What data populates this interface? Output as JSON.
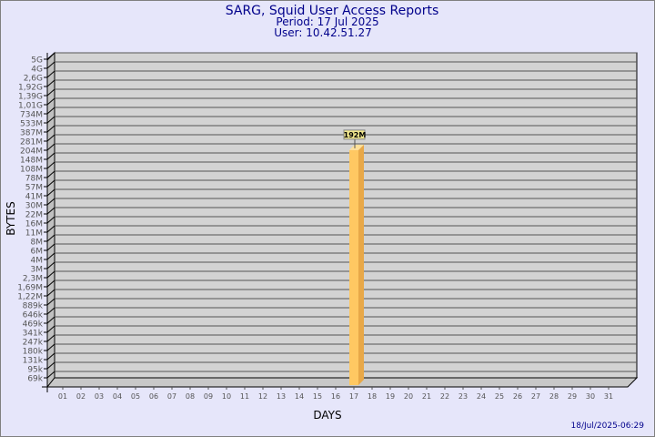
{
  "chart_data": {
    "type": "bar",
    "title": "SARG, Squid User Access Reports",
    "subtitle_period": "Period: 17 Jul 2025",
    "subtitle_user": "User: 10.42.51.27",
    "xlabel": "DAYS",
    "ylabel": "BYTES",
    "y_scale": "log",
    "y_tick_labels": [
      "5G",
      "4G",
      "2,6G",
      "1,92G",
      "1,39G",
      "1,01G",
      "734M",
      "533M",
      "387M",
      "281M",
      "204M",
      "148M",
      "108M",
      "78M",
      "57M",
      "41M",
      "30M",
      "22M",
      "16M",
      "11M",
      "8M",
      "6M",
      "4M",
      "3M",
      "2,3M",
      "1,69M",
      "1,22M",
      "889k",
      "646k",
      "469k",
      "341k",
      "247k",
      "180k",
      "131k",
      "95k",
      "69k"
    ],
    "categories": [
      "01",
      "02",
      "03",
      "04",
      "05",
      "06",
      "07",
      "08",
      "09",
      "10",
      "11",
      "12",
      "13",
      "14",
      "15",
      "16",
      "17",
      "18",
      "19",
      "20",
      "21",
      "22",
      "23",
      "24",
      "25",
      "26",
      "27",
      "28",
      "29",
      "30",
      "31"
    ],
    "bars": [
      {
        "category": "17",
        "value": "192M"
      }
    ],
    "grid": true,
    "colors": {
      "bar_front": "#ffc862",
      "bar_side": "#e8a848",
      "wall": "#d3d3d3",
      "title": "#00008b",
      "background": "#e6e6fa"
    }
  },
  "footer": {
    "timestamp": "18/Jul/2025-06:29"
  }
}
